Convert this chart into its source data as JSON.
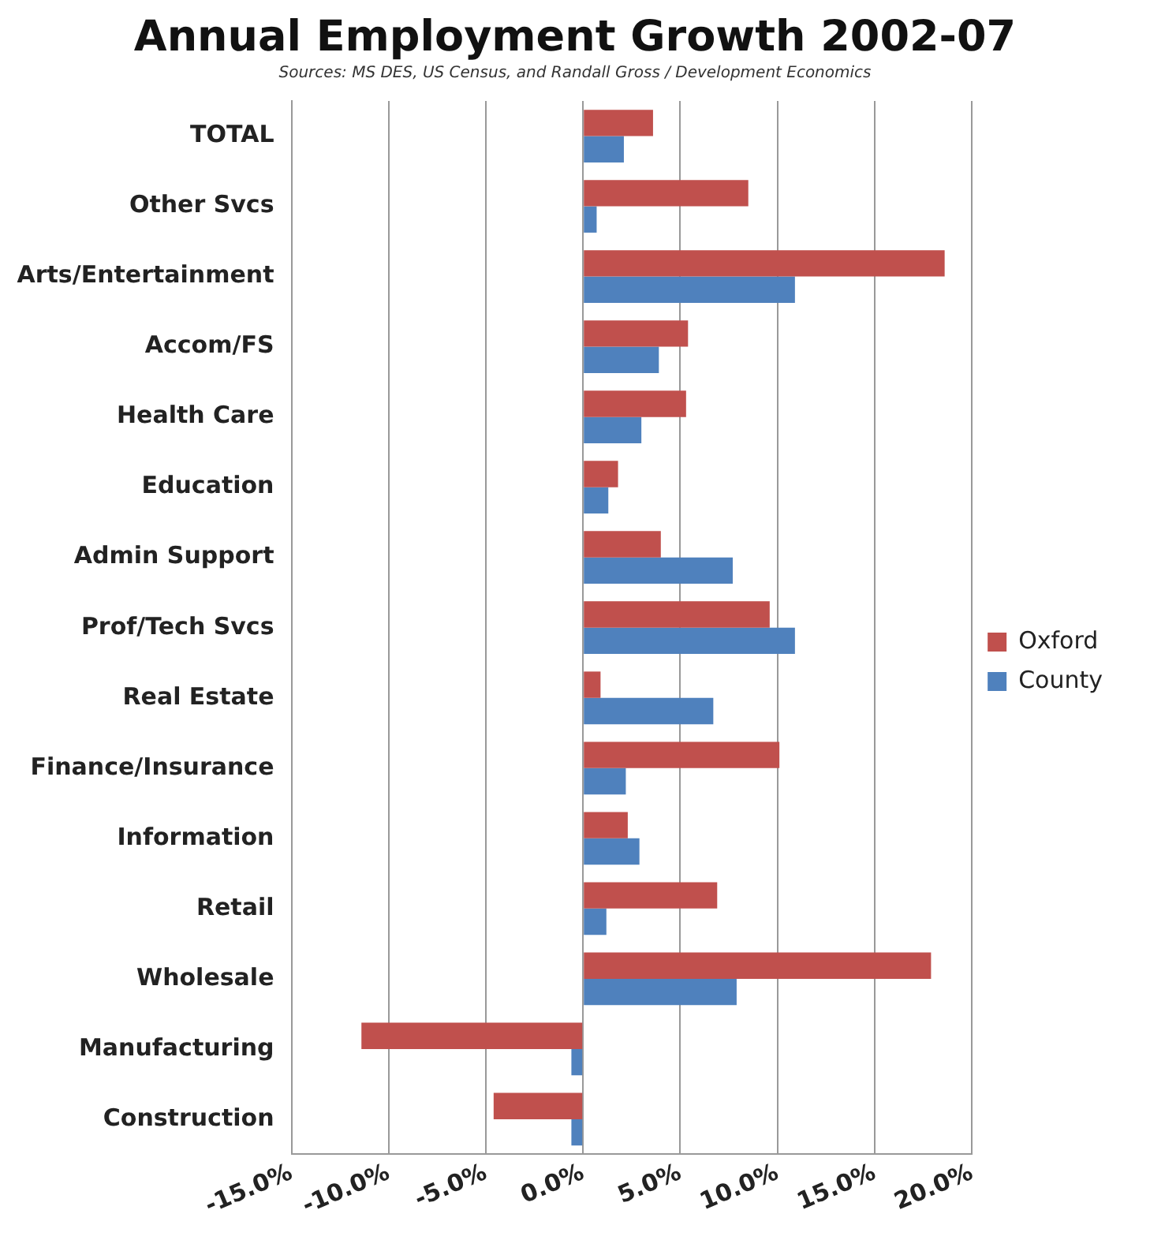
{
  "chart_data": {
    "type": "bar",
    "orientation": "horizontal",
    "title": "Annual Employment Growth 2002-07",
    "subtitle": "Sources: MS DES, US Census, and Randall Gross / Development Economics",
    "categories": [
      "TOTAL",
      "Other Svcs",
      "Arts/Entertainment",
      "Accom/FS",
      "Health Care",
      "Education",
      "Admin Support",
      "Prof/Tech Svcs",
      "Real Estate",
      "Finance/Insurance",
      "Information",
      "Retail",
      "Wholesale",
      "Manufacturing",
      "Construction"
    ],
    "series": [
      {
        "name": "Oxford",
        "color": "#c0504d",
        "values": [
          3.6,
          8.5,
          18.6,
          5.4,
          5.3,
          1.8,
          4.0,
          9.6,
          0.9,
          10.1,
          2.3,
          6.9,
          17.9,
          -11.4,
          -4.6
        ]
      },
      {
        "name": "County",
        "color": "#4f81bd",
        "values": [
          2.1,
          0.7,
          10.9,
          3.9,
          3.0,
          1.3,
          7.7,
          10.9,
          6.7,
          2.2,
          2.9,
          1.2,
          7.9,
          -0.6,
          -0.6
        ]
      }
    ],
    "xlim": [
      -15,
      20
    ],
    "xticks": [
      {
        "value": -15,
        "label": "-15.0%"
      },
      {
        "value": -10,
        "label": "-10.0%"
      },
      {
        "value": -5,
        "label": "-5.0%"
      },
      {
        "value": 0,
        "label": "0.0%"
      },
      {
        "value": 5,
        "label": "5.0%"
      },
      {
        "value": 10,
        "label": "10.0%"
      },
      {
        "value": 15,
        "label": "15.0%"
      },
      {
        "value": 20,
        "label": "20.0%"
      }
    ],
    "grid": "x",
    "legend": "right"
  }
}
